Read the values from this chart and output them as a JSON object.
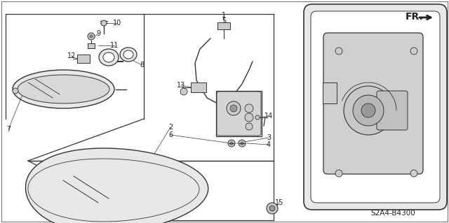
{
  "bg_color": "#ffffff",
  "diagram_code": "S2A4-B4300",
  "fr_label": "FR.",
  "line_color": "#333333",
  "text_color": "#222222",
  "label_fontsize": 7.0,
  "code_fontsize": 7.5,
  "fr_fontsize": 10
}
